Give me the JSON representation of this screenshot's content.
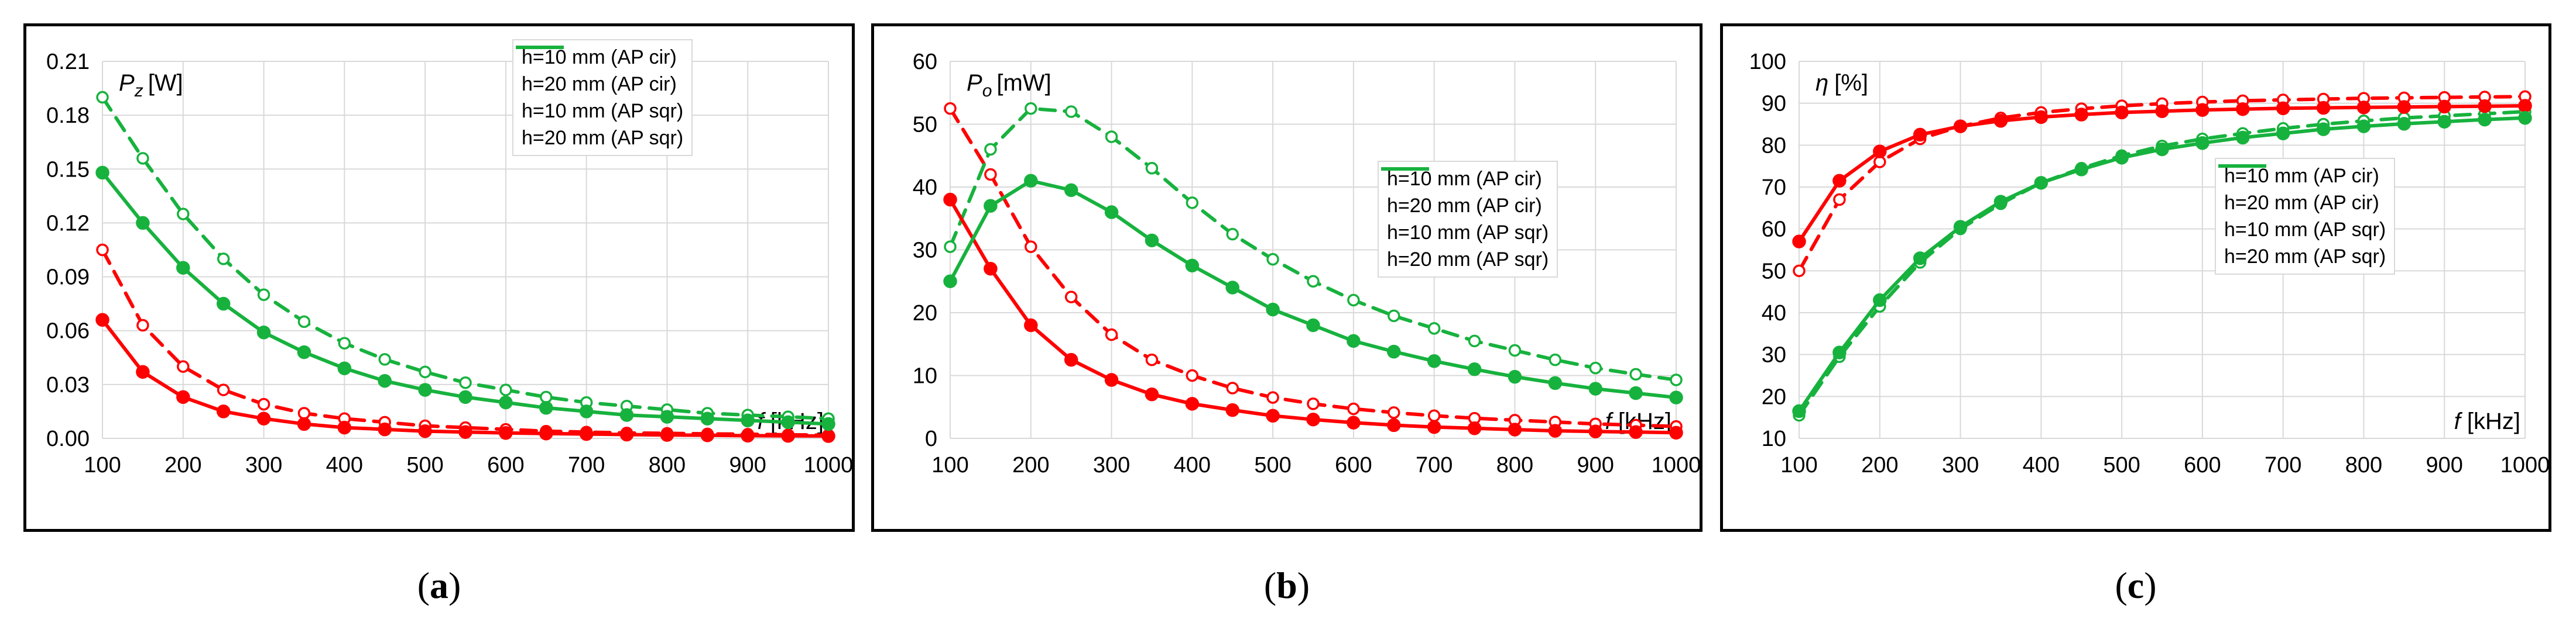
{
  "captions": {
    "a_paren_open": "(",
    "a": "a",
    "a_paren_close": ")",
    "b": "b",
    "c": "c"
  },
  "colors": {
    "red": "#ff0000",
    "green": "#17b23e",
    "grid": "#d9d9d9",
    "border": "#000000"
  },
  "chart_data": [
    {
      "id": "a",
      "type": "line",
      "caption": "(a)",
      "ylabel_symbol": "P",
      "ylabel_sub": "z",
      "ylabel_unit": "[W]",
      "xlabel_symbol": "f",
      "xlabel_unit": "[kHz]",
      "xlim": [
        100,
        1000
      ],
      "ylim": [
        0,
        0.21
      ],
      "yticks": [
        "0.00",
        "0.03",
        "0.06",
        "0.09",
        "0.12",
        "0.15",
        "0.18",
        "0.21"
      ],
      "ytick_values": [
        0,
        0.03,
        0.06,
        0.09,
        0.12,
        0.15,
        0.18,
        0.21
      ],
      "xticks": [
        "100",
        "200",
        "300",
        "400",
        "500",
        "600",
        "700",
        "800",
        "900",
        "1000"
      ],
      "x": [
        100,
        150,
        200,
        250,
        300,
        350,
        400,
        450,
        500,
        550,
        600,
        650,
        700,
        750,
        800,
        850,
        900,
        950,
        1000
      ],
      "legend_position": "top-right",
      "series": [
        {
          "name": "h=10 mm (AP cir)",
          "color": "#ff0000",
          "dash": true,
          "marker": "open",
          "values": [
            0.105,
            0.063,
            0.04,
            0.027,
            0.019,
            0.014,
            0.011,
            0.009,
            0.007,
            0.006,
            0.005,
            0.004,
            0.0035,
            0.003,
            0.0028,
            0.0025,
            0.0023,
            0.002,
            0.0018
          ]
        },
        {
          "name": "h=20 mm (AP cir)",
          "color": "#17b23e",
          "dash": true,
          "marker": "open",
          "values": [
            0.19,
            0.156,
            0.125,
            0.1,
            0.08,
            0.065,
            0.053,
            0.044,
            0.037,
            0.031,
            0.027,
            0.023,
            0.02,
            0.018,
            0.016,
            0.014,
            0.013,
            0.012,
            0.011
          ]
        },
        {
          "name": "h=10 mm (AP sqr)",
          "color": "#ff0000",
          "dash": false,
          "marker": "filled",
          "values": [
            0.066,
            0.037,
            0.023,
            0.015,
            0.011,
            0.008,
            0.006,
            0.005,
            0.004,
            0.0035,
            0.003,
            0.0027,
            0.0024,
            0.0021,
            0.0019,
            0.0017,
            0.0015,
            0.0014,
            0.0013
          ]
        },
        {
          "name": "h=20 mm (AP sqr)",
          "color": "#17b23e",
          "dash": false,
          "marker": "filled",
          "values": [
            0.148,
            0.12,
            0.095,
            0.075,
            0.059,
            0.048,
            0.039,
            0.032,
            0.027,
            0.023,
            0.02,
            0.017,
            0.015,
            0.013,
            0.012,
            0.011,
            0.01,
            0.009,
            0.008
          ]
        }
      ]
    },
    {
      "id": "b",
      "type": "line",
      "caption": "(b)",
      "ylabel_symbol": "P",
      "ylabel_sub": "o",
      "ylabel_unit": "[mW]",
      "xlabel_symbol": "f",
      "xlabel_unit": "[kHz]",
      "xlim": [
        100,
        1000
      ],
      "ylim": [
        0,
        60
      ],
      "yticks": [
        "0",
        "10",
        "20",
        "30",
        "40",
        "50",
        "60"
      ],
      "ytick_values": [
        0,
        10,
        20,
        30,
        40,
        50,
        60
      ],
      "xticks": [
        "100",
        "200",
        "300",
        "400",
        "500",
        "600",
        "700",
        "800",
        "900",
        "1000"
      ],
      "x": [
        100,
        150,
        200,
        250,
        300,
        350,
        400,
        450,
        500,
        550,
        600,
        650,
        700,
        750,
        800,
        850,
        900,
        950,
        1000
      ],
      "legend_position": "right",
      "series": [
        {
          "name": "h=10 mm (AP cir)",
          "color": "#ff0000",
          "dash": true,
          "marker": "open",
          "values": [
            52.5,
            42,
            30.5,
            22.5,
            16.5,
            12.5,
            10,
            8,
            6.5,
            5.5,
            4.7,
            4.1,
            3.6,
            3.2,
            2.9,
            2.6,
            2.3,
            2.1,
            1.9
          ]
        },
        {
          "name": "h=20 mm (AP cir)",
          "color": "#17b23e",
          "dash": true,
          "marker": "open",
          "values": [
            30.5,
            46,
            52.5,
            52,
            48,
            43,
            37.5,
            32.5,
            28.5,
            25,
            22,
            19.5,
            17.5,
            15.5,
            14,
            12.5,
            11.2,
            10.2,
            9.3
          ]
        },
        {
          "name": "h=10 mm (AP sqr)",
          "color": "#ff0000",
          "dash": false,
          "marker": "filled",
          "values": [
            38,
            27,
            18,
            12.5,
            9.3,
            7,
            5.5,
            4.5,
            3.6,
            3,
            2.5,
            2.1,
            1.8,
            1.6,
            1.4,
            1.2,
            1.1,
            1,
            0.9
          ]
        },
        {
          "name": "h=20 mm (AP sqr)",
          "color": "#17b23e",
          "dash": false,
          "marker": "filled",
          "values": [
            25,
            37,
            41,
            39.5,
            36,
            31.5,
            27.5,
            24,
            20.5,
            18,
            15.5,
            13.8,
            12.3,
            11,
            9.8,
            8.8,
            7.9,
            7.2,
            6.5
          ]
        }
      ]
    },
    {
      "id": "c",
      "type": "line",
      "caption": "(c)",
      "ylabel_symbol": "η",
      "ylabel_sub": "",
      "ylabel_unit": "[%]",
      "xlabel_symbol": "f",
      "xlabel_unit": "[kHz]",
      "xlim": [
        100,
        1000
      ],
      "ylim": [
        10,
        100
      ],
      "yticks": [
        "10",
        "20",
        "30",
        "40",
        "50",
        "60",
        "70",
        "80",
        "90",
        "100"
      ],
      "ytick_values": [
        10,
        20,
        30,
        40,
        50,
        60,
        70,
        80,
        90,
        100
      ],
      "xticks": [
        "100",
        "200",
        "300",
        "400",
        "500",
        "600",
        "700",
        "800",
        "900",
        "1000"
      ],
      "x": [
        100,
        150,
        200,
        250,
        300,
        350,
        400,
        450,
        500,
        550,
        600,
        650,
        700,
        750,
        800,
        850,
        900,
        950,
        1000
      ],
      "legend_position": "right",
      "series": [
        {
          "name": "h=10 mm (AP cir)",
          "color": "#ff0000",
          "dash": true,
          "marker": "open",
          "values": [
            50,
            67,
            76,
            81.5,
            84.5,
            86.5,
            87.8,
            88.7,
            89.4,
            89.9,
            90.3,
            90.6,
            90.8,
            91,
            91.2,
            91.3,
            91.4,
            91.5,
            91.6
          ]
        },
        {
          "name": "h=20 mm (AP cir)",
          "color": "#17b23e",
          "dash": true,
          "marker": "open",
          "values": [
            15.5,
            29.5,
            41.5,
            52,
            60,
            66,
            71,
            74.5,
            77.5,
            79.8,
            81.5,
            82.8,
            84,
            85,
            85.8,
            86.5,
            87,
            87.5,
            88
          ]
        },
        {
          "name": "h=10 mm (AP sqr)",
          "color": "#ff0000",
          "dash": false,
          "marker": "filled",
          "values": [
            57,
            71.5,
            78.5,
            82.5,
            84.5,
            85.8,
            86.7,
            87.3,
            87.8,
            88.1,
            88.4,
            88.6,
            88.8,
            88.9,
            89,
            89.1,
            89.2,
            89.3,
            89.4
          ]
        },
        {
          "name": "h=20 mm (AP sqr)",
          "color": "#17b23e",
          "dash": false,
          "marker": "filled",
          "values": [
            16.5,
            30.5,
            43,
            53,
            60.5,
            66.5,
            71,
            74.2,
            77,
            79,
            80.5,
            81.8,
            82.8,
            83.8,
            84.5,
            85.1,
            85.6,
            86.1,
            86.5
          ]
        }
      ]
    }
  ]
}
